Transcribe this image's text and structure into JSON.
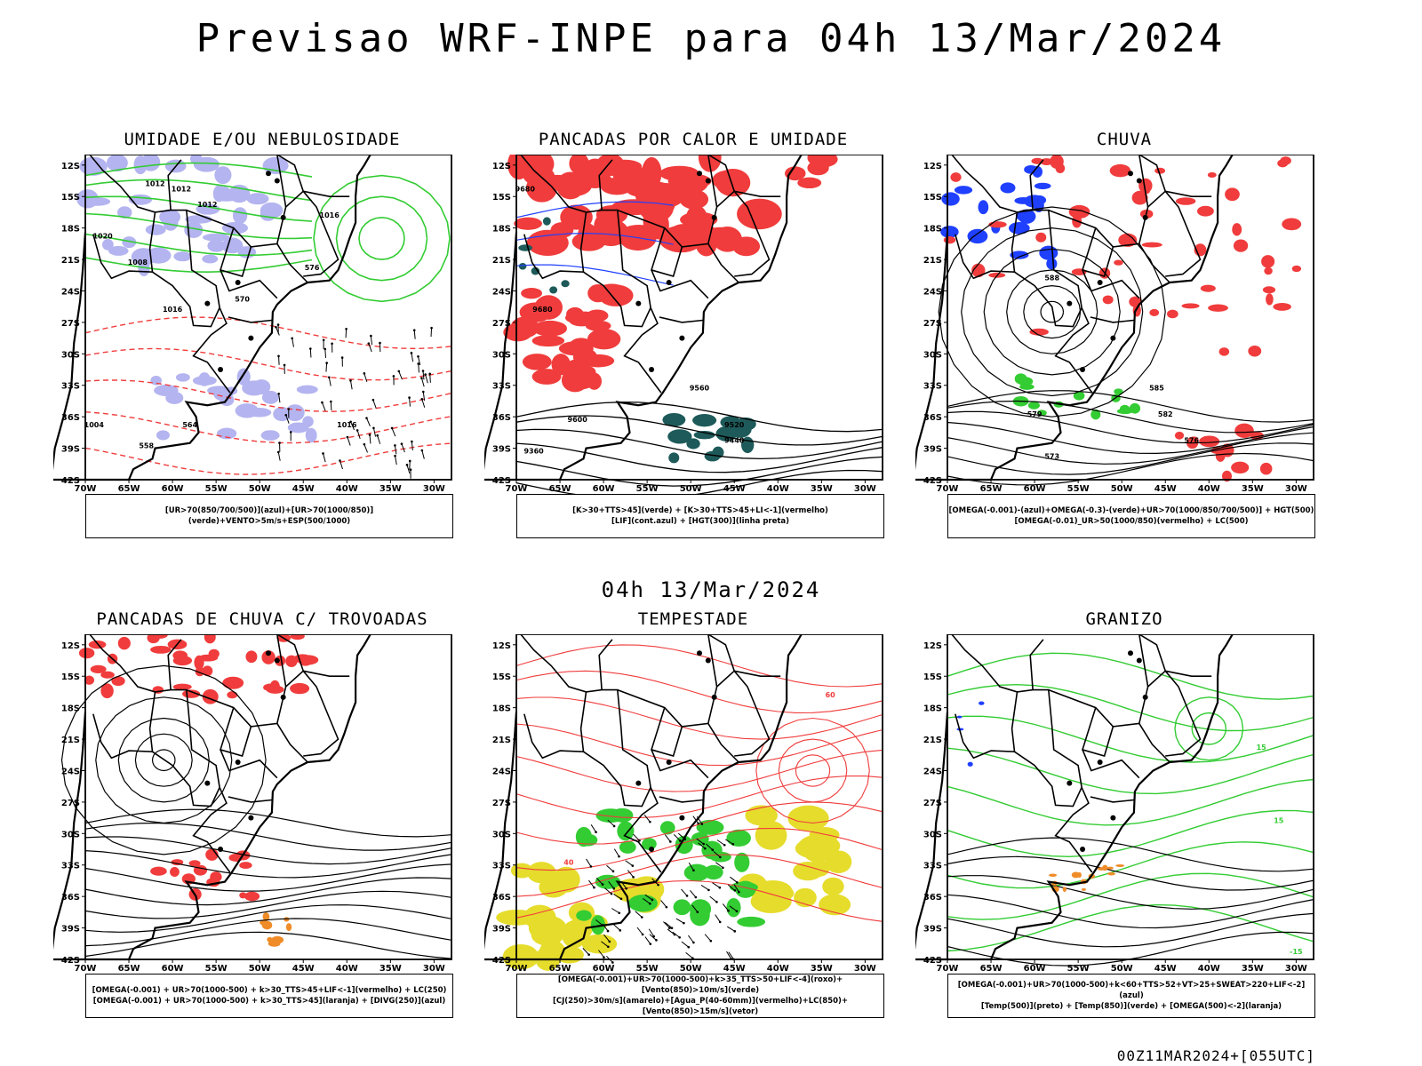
{
  "header": {
    "title": "Previsao WRF-INPE  para 04h 13/Mar/2024"
  },
  "middle": {
    "subtitle": "04h 13/Mar/2024"
  },
  "footer": {
    "run": "00Z11MAR2024+[055UTC]"
  },
  "axes": {
    "lat": [
      "12S",
      "15S",
      "18S",
      "21S",
      "24S",
      "27S",
      "30S",
      "33S",
      "36S",
      "39S",
      "42S"
    ],
    "lon": [
      "70W",
      "65W",
      "60W",
      "55W",
      "50W",
      "45W",
      "40W",
      "35W",
      "30W"
    ]
  },
  "colors": {
    "red": "#f03c3c",
    "green": "#33cc33",
    "blue": "#2040ff",
    "lavender": "#b4b4f0",
    "teal": "#1e5a5a",
    "yellow": "#e6dc2c",
    "orange": "#f08c28"
  },
  "panels": [
    {
      "title": "UMIDADE E/OU NEBULOSIDADE",
      "legend": [
        "[UR>70(850/700/500)](azul)+[UR>70(1000/850)](verde)+VENTO>5m/s+ESP(500/1000)"
      ],
      "labels": [
        "1012",
        "1012",
        "1012",
        "1016",
        "1020",
        "1008",
        "1016",
        "576",
        "570",
        "564",
        "558",
        "1016",
        "1004"
      ]
    },
    {
      "title": "PANCADAS POR CALOR E UMIDADE",
      "legend": [
        "[K>30+TTS>45](verde) + [K>30+TTS>45+LI<-1](vermelho)",
        "[LIF](cont.azul) + [HGT(300)](linha preta)"
      ],
      "labels": [
        "9680",
        "9680",
        "9600",
        "9520",
        "9440",
        "9360",
        "9560"
      ]
    },
    {
      "title": "CHUVA",
      "legend": [
        "[OMEGA(-0.001)-(azul)+OMEGA(-0.3)-(verde)+UR>70(1000/850/700/500)] + HGT(500)",
        "[OMEGA(-0.01)_UR>50(1000/850)(vermelho) + LC(500)"
      ],
      "labels": [
        "588",
        "585",
        "582",
        "579",
        "576",
        "573"
      ]
    },
    {
      "title": "PANCADAS DE CHUVA C/ TROVOADAS",
      "legend": [
        "[OMEGA(-0.001) + UR>70(1000-500) + k>30_TTS>45+LIF<-1](vermelho) + LC(250)",
        "[OMEGA(-0.001) + UR>70(1000-500) + k>30_TTS>45](laranja) + [DIVG(250)](azul)"
      ],
      "labels": []
    },
    {
      "title": "TEMPESTADE",
      "legend": [
        "[OMEGA(-0.001)+UR>70(1000-500)+k>35_TTS>50+LIF<-4](roxo)+[Vento(850)>10m/s](verde)",
        "[CJ(250)>30m/s](amarelo)+[Agua_P(40-60mm)](vermelho)+LC(850)+[Vento(850)>15m/s](vetor)"
      ],
      "labels": [
        "60",
        "40"
      ]
    },
    {
      "title": "GRANIZO",
      "legend": [
        "[OMEGA(-0.001)+UR>70(1000-500)+k<60+TTS>52+VT>25+SWEAT>220+LIF<-2](azul)",
        "[Temp(500)](preto) + [Temp(850)](verde) + [OMEGA(500)<-2](laranja)"
      ],
      "labels": [
        "15",
        "15",
        "-15"
      ]
    }
  ]
}
